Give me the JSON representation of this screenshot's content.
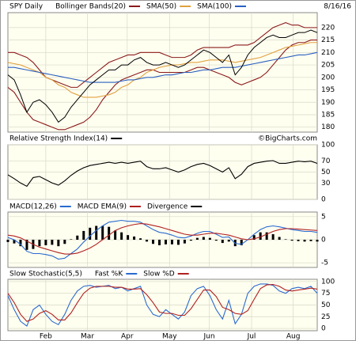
{
  "chart_data": [
    {
      "type": "line",
      "title": "SPY Daily",
      "subtitle": "8/16/16",
      "ylim": [
        178,
        226
      ],
      "yticks": [
        180,
        185,
        190,
        195,
        200,
        205,
        210,
        215,
        220
      ],
      "series": [
        {
          "name": "Bollinger Bands(20)",
          "type": "band",
          "color": "#8b1a1a",
          "upper": [
            210,
            210,
            209,
            208,
            206,
            203,
            200,
            199,
            198,
            197,
            196,
            196,
            198,
            200,
            202,
            204,
            206,
            207,
            208,
            209,
            209,
            210,
            210,
            210,
            210,
            209,
            208,
            208,
            208,
            209,
            211,
            212,
            212,
            212,
            212,
            212,
            213,
            213,
            213,
            214,
            216,
            218,
            220,
            221,
            222,
            221,
            221,
            220,
            220,
            220
          ],
          "lower": [
            196,
            194,
            190,
            186,
            183,
            182,
            181,
            180,
            179,
            179,
            180,
            181,
            182,
            184,
            187,
            191,
            194,
            197,
            199,
            200,
            201,
            202,
            203,
            203,
            202,
            202,
            202,
            202,
            202,
            203,
            204,
            204,
            203,
            202,
            201,
            200,
            198,
            197,
            198,
            199,
            200,
            202,
            205,
            208,
            211,
            213,
            214,
            214,
            215,
            215
          ]
        },
        {
          "name": "SMA(50)",
          "type": "line",
          "color": "#e0a040",
          "values": [
            206,
            205.5,
            205,
            204,
            203,
            202,
            200,
            199,
            197,
            196,
            194,
            193,
            192,
            192,
            192,
            192.5,
            193,
            194,
            196,
            197,
            199,
            200,
            202,
            203,
            204,
            204.5,
            205,
            205,
            205.5,
            206,
            206,
            206.5,
            207,
            207,
            207,
            206.5,
            206,
            206.5,
            207,
            207.5,
            208,
            209,
            210,
            211,
            212,
            212.5,
            213,
            213.5,
            214,
            214
          ]
        },
        {
          "name": "SMA(100)",
          "type": "line",
          "color": "#2a5fc0",
          "values": [
            204,
            204,
            203.5,
            203,
            202.5,
            202,
            201.5,
            201,
            200.5,
            200,
            199.5,
            199,
            198.5,
            198,
            198,
            198,
            198,
            198,
            198.5,
            199,
            199,
            199.5,
            200,
            200,
            200.5,
            201,
            201,
            201.5,
            202,
            202,
            202.5,
            203,
            203,
            203.5,
            204,
            204,
            204,
            204.5,
            205,
            205.5,
            206,
            206.5,
            207,
            207.5,
            208,
            208.5,
            209,
            209,
            209.5,
            210
          ]
        },
        {
          "type": "line",
          "color": "#000000",
          "values": [
            201,
            199,
            193,
            186,
            190,
            191,
            189,
            186,
            182,
            184,
            188,
            191,
            194,
            197,
            199,
            201,
            203,
            203,
            205,
            205,
            207,
            208,
            206,
            205,
            205,
            206,
            205,
            204,
            205,
            207,
            209,
            211,
            210,
            208,
            206,
            209,
            201,
            204,
            209,
            212,
            214,
            216,
            217,
            216,
            216,
            217,
            218,
            218,
            219,
            218
          ]
        }
      ]
    },
    {
      "type": "line",
      "annotation": "©BigCharts.com",
      "ylim": [
        0,
        100
      ],
      "yticks": [
        0,
        30,
        50,
        70,
        100
      ],
      "series": [
        {
          "name": "Relative Strength Index(14)",
          "type": "line",
          "color": "#000000",
          "values": [
            45,
            38,
            30,
            24,
            40,
            42,
            36,
            30,
            26,
            34,
            44,
            52,
            58,
            62,
            64,
            66,
            68,
            66,
            68,
            66,
            68,
            70,
            60,
            56,
            56,
            58,
            54,
            50,
            54,
            60,
            64,
            66,
            62,
            56,
            50,
            58,
            38,
            46,
            60,
            66,
            68,
            70,
            71,
            66,
            66,
            68,
            70,
            69,
            70,
            66
          ]
        }
      ]
    },
    {
      "type": "line",
      "ylim": [
        -6,
        6
      ],
      "yticks": [
        -5,
        0,
        5
      ],
      "series": [
        {
          "name": "MACD(12,26)",
          "type": "line",
          "color": "#2a6ad0",
          "values": [
            0.5,
            0,
            -1,
            -2.5,
            -3,
            -3,
            -3.2,
            -3.5,
            -4.2,
            -4,
            -3,
            -2,
            -0.5,
            0.8,
            2,
            3,
            3.8,
            4,
            4.2,
            4,
            4,
            3.8,
            3,
            2.2,
            1.6,
            1.4,
            1,
            0.5,
            0.4,
            0.8,
            1.4,
            1.8,
            1.8,
            1.2,
            0.5,
            0.6,
            -0.8,
            -1,
            0,
            1.2,
            2.2,
            2.8,
            3,
            2.8,
            2.5,
            2.2,
            2,
            1.8,
            1.8,
            1.6
          ]
        },
        {
          "name": "MACD EMA(9)",
          "type": "line",
          "color": "#b02020",
          "values": [
            1,
            0.8,
            0.4,
            -0.3,
            -1,
            -1.6,
            -2,
            -2.4,
            -2.8,
            -3.1,
            -3.1,
            -2.9,
            -2.4,
            -1.8,
            -1,
            0,
            1,
            2,
            2.6,
            3,
            3.3,
            3.5,
            3.4,
            3.1,
            2.8,
            2.4,
            2,
            1.6,
            1.2,
            1,
            1,
            1.2,
            1.4,
            1.4,
            1.2,
            1,
            0.6,
            0.2,
            0,
            0.2,
            0.6,
            1.2,
            1.8,
            2.2,
            2.4,
            2.4,
            2.3,
            2.2,
            2.1,
            2
          ]
        },
        {
          "name": "Divergence",
          "type": "bar",
          "color": "#000000",
          "values": [
            -0.5,
            -0.8,
            -1.4,
            -2.2,
            -2,
            -1.4,
            -1.2,
            -1.1,
            -1.4,
            -0.9,
            0.1,
            0.9,
            1.9,
            2.6,
            3,
            3,
            2.8,
            2,
            1.6,
            1,
            0.7,
            0.3,
            -0.4,
            -0.9,
            -1.2,
            -1,
            -1,
            -1.1,
            -0.8,
            -0.2,
            0.4,
            0.6,
            0.4,
            -0.2,
            -0.7,
            -0.4,
            -1.4,
            -1.2,
            0,
            1,
            1.6,
            1.6,
            1.2,
            0.6,
            0.1,
            -0.2,
            -0.3,
            -0.4,
            -0.3,
            -0.4
          ]
        }
      ]
    },
    {
      "type": "line",
      "title": "Slow Stochastic(5,5)",
      "ylim": [
        -5,
        105
      ],
      "yticks": [
        0,
        25,
        50,
        75,
        100
      ],
      "xlim": [
        0,
        49
      ],
      "xticks": [
        {
          "value": 6,
          "label": "Feb"
        },
        {
          "value": 12.6,
          "label": "Mar"
        },
        {
          "value": 18.9,
          "label": "Apr"
        },
        {
          "value": 25.6,
          "label": "May"
        },
        {
          "value": 31.9,
          "label": "Jun"
        },
        {
          "value": 38.6,
          "label": "Jul"
        },
        {
          "value": 45.2,
          "label": "Aug"
        }
      ],
      "series": [
        {
          "name": "Fast %K",
          "type": "line",
          "color": "#2a6ad0",
          "values": [
            70,
            40,
            15,
            5,
            40,
            50,
            30,
            15,
            8,
            30,
            60,
            80,
            90,
            92,
            88,
            90,
            92,
            85,
            88,
            80,
            85,
            90,
            50,
            30,
            25,
            40,
            30,
            20,
            35,
            70,
            85,
            90,
            70,
            40,
            20,
            60,
            10,
            30,
            75,
            90,
            95,
            95,
            92,
            80,
            75,
            85,
            88,
            85,
            90,
            75
          ]
        },
        {
          "name": "Slow %D",
          "type": "line",
          "color": "#b02020",
          "values": [
            75,
            55,
            30,
            15,
            20,
            32,
            38,
            30,
            18,
            18,
            33,
            55,
            75,
            86,
            90,
            90,
            90,
            88,
            88,
            84,
            84,
            85,
            72,
            55,
            35,
            32,
            32,
            28,
            28,
            42,
            62,
            82,
            82,
            68,
            45,
            40,
            32,
            30,
            38,
            62,
            85,
            93,
            94,
            90,
            82,
            80,
            82,
            84,
            86,
            84
          ]
        }
      ]
    }
  ]
}
